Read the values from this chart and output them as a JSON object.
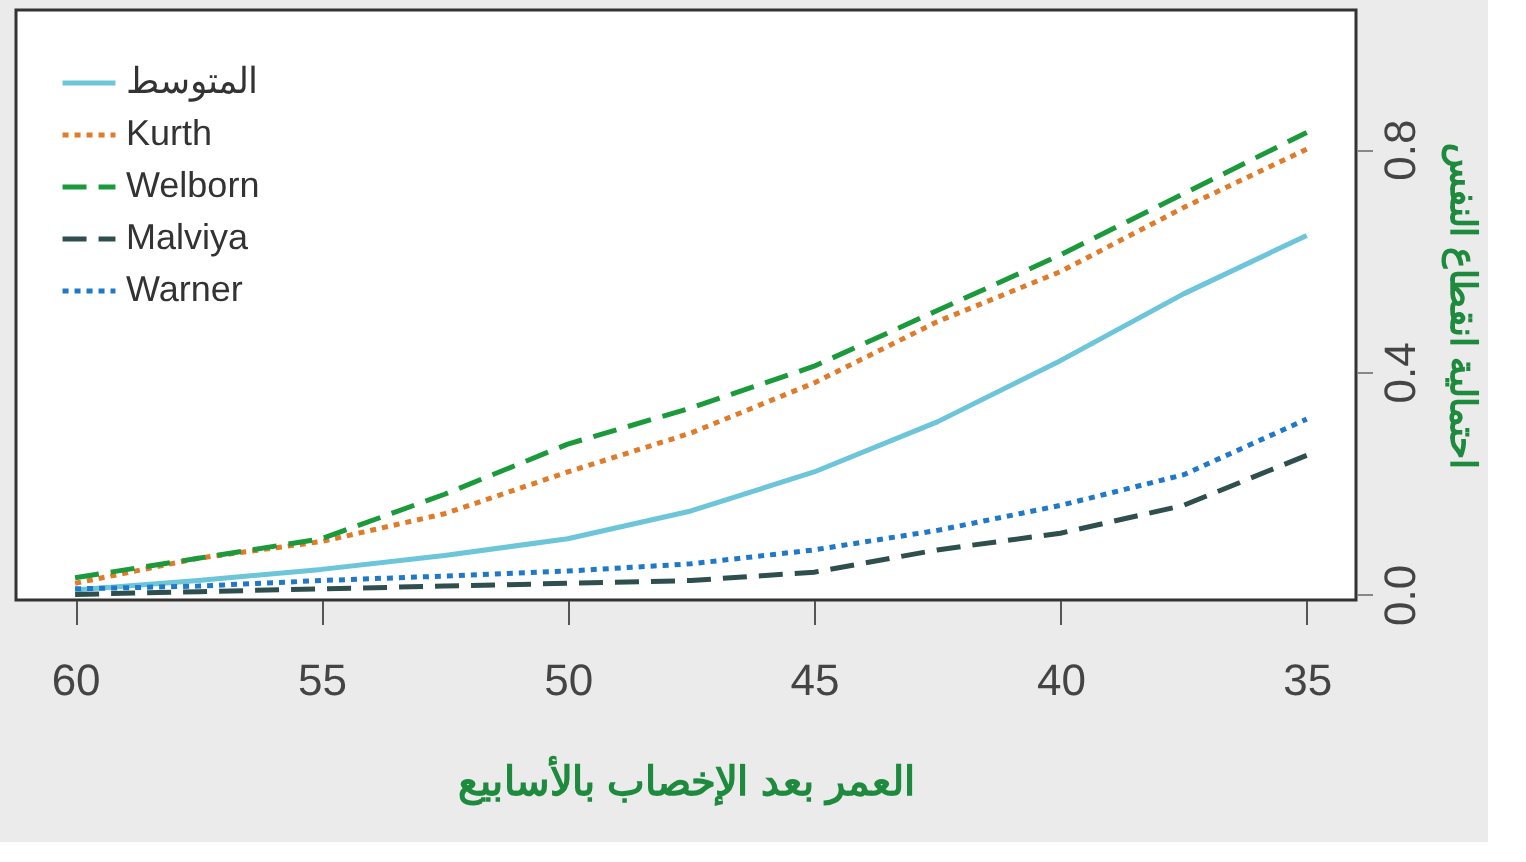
{
  "chart_data": {
    "type": "line",
    "xlabel": "العمر بعد الإخصاب بالأسابيع",
    "ylabel": "احتمالية انقطاع النفس",
    "x": [
      60,
      57.5,
      55,
      52.5,
      50,
      47.5,
      45,
      42.5,
      40,
      37.5,
      35
    ],
    "xlim": [
      61.2,
      34.0
    ],
    "xticks": [
      60,
      55,
      50,
      45,
      40,
      35
    ],
    "ylim": [
      -0.01,
      1.05
    ],
    "yticks": [
      {
        "value": 0,
        "label": "0.0"
      },
      0.4,
      0.8
    ],
    "grid": false,
    "legend": "top left",
    "marker": "none",
    "series": [
      {
        "name": "المتوسط",
        "color": "#6cc5d8",
        "line_style": "solid",
        "values": [
          0.008,
          0.025,
          0.045,
          0.07,
          0.1,
          0.15,
          0.22,
          0.31,
          0.42,
          0.54,
          0.645
        ]
      },
      {
        "name": "Kurth",
        "color": "#e07b2a",
        "line_style": "dotted",
        "values": [
          0.02,
          0.065,
          0.095,
          0.145,
          0.22,
          0.29,
          0.38,
          0.49,
          0.58,
          0.695,
          0.8
        ]
      },
      {
        "name": "Welborn",
        "color": "#1a9a3a",
        "line_style": "dashed",
        "values": [
          0.03,
          0.065,
          0.1,
          0.18,
          0.27,
          0.335,
          0.41,
          0.51,
          0.61,
          0.72,
          0.83
        ]
      },
      {
        "name": "Malviya",
        "color": "#2f4f4f",
        "line_style": "dashed",
        "values": [
          0.0,
          0.005,
          0.01,
          0.015,
          0.02,
          0.025,
          0.04,
          0.08,
          0.11,
          0.16,
          0.25
        ]
      },
      {
        "name": "Warner",
        "color": "#1f78c8",
        "line_style": "dotted",
        "values": [
          0.01,
          0.015,
          0.025,
          0.033,
          0.042,
          0.055,
          0.08,
          0.115,
          0.16,
          0.215,
          0.315
        ]
      }
    ]
  }
}
